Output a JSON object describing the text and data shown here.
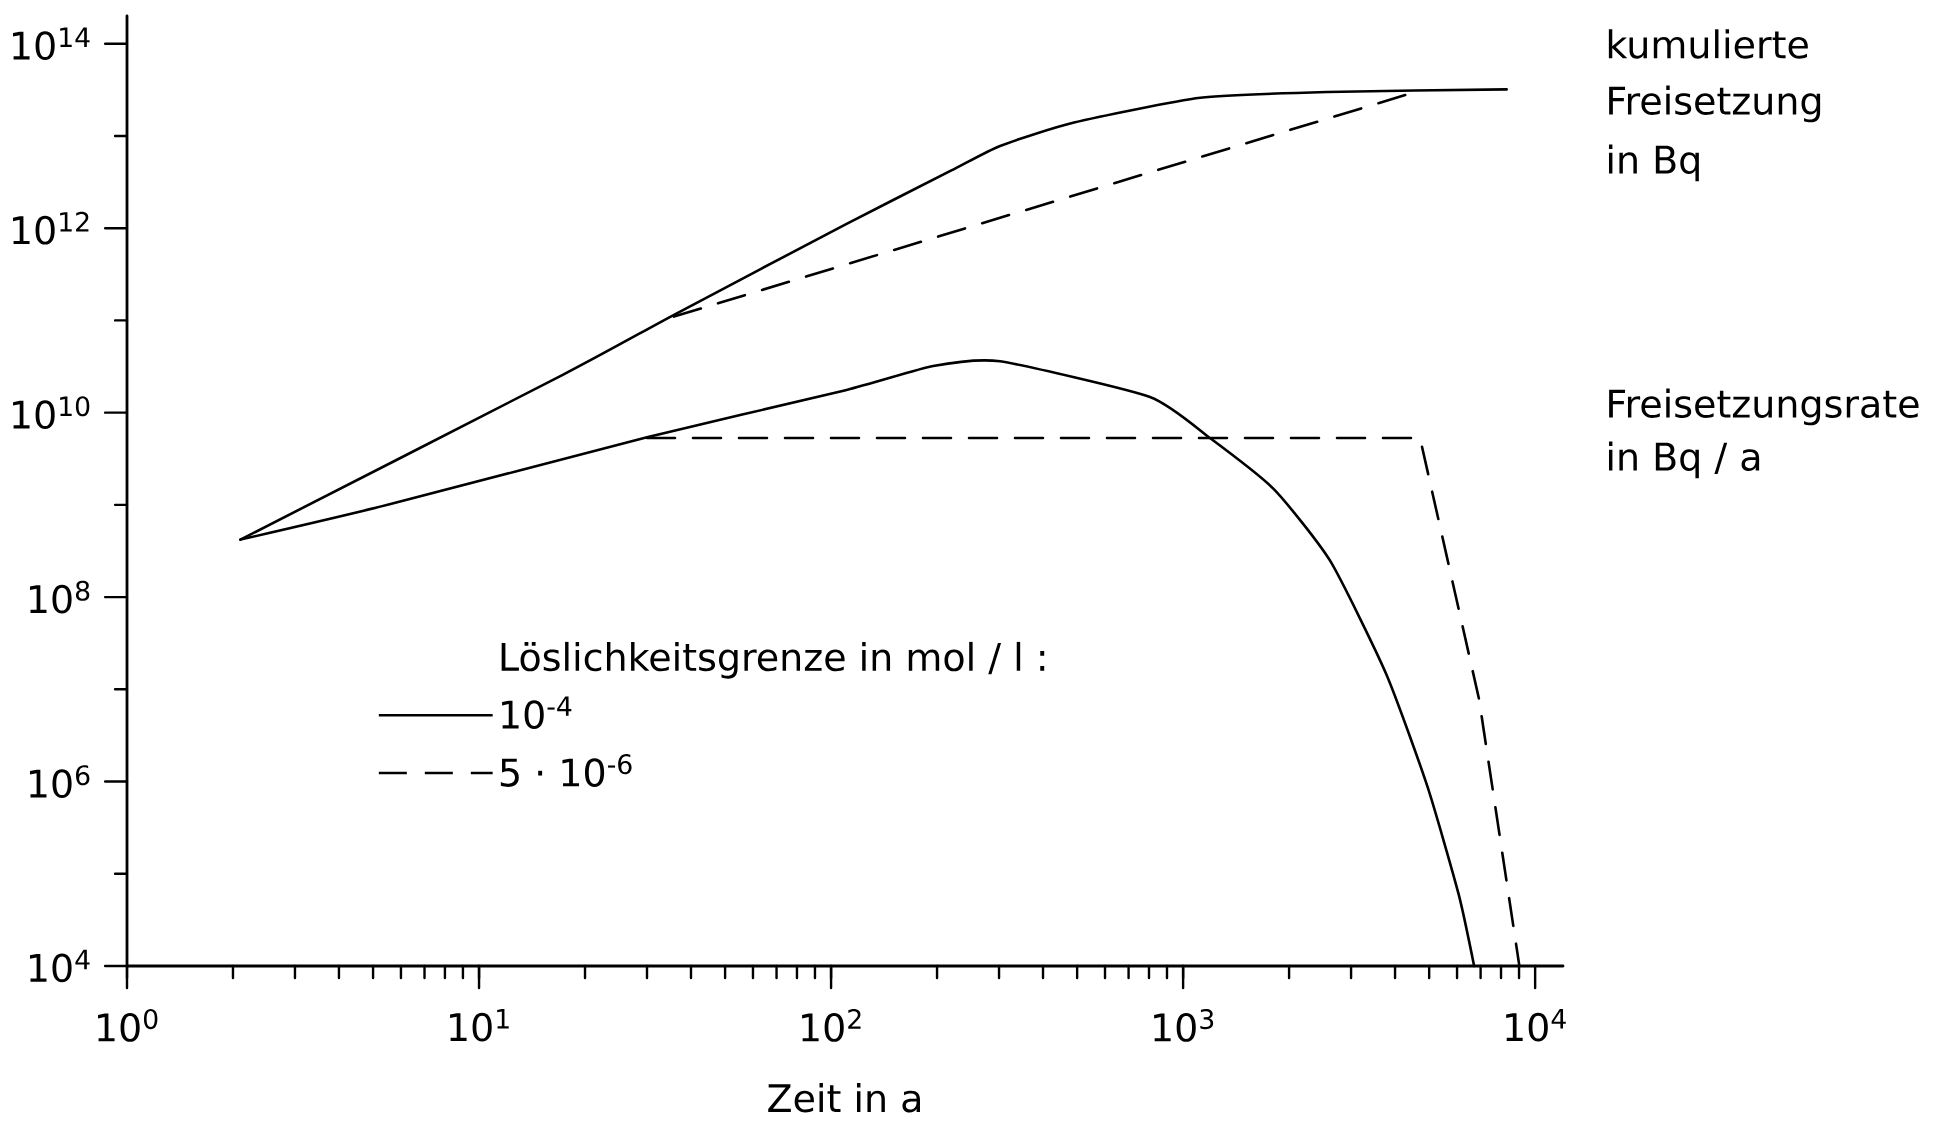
{
  "chart_data": {
    "type": "line",
    "xlabel": "Zeit in a",
    "log": "xy",
    "xlim": [
      1,
      12000
    ],
    "ylim": [
      10000,
      200000000000000
    ],
    "xticks": [
      {
        "value": 1,
        "label": "10$^{0}$"
      },
      {
        "value": 10,
        "label": "10$^{1}$"
      },
      {
        "value": 100,
        "label": "10$^{2}$"
      },
      {
        "value": 1000,
        "label": "10$^{3}$"
      },
      {
        "value": 10000,
        "label": "10$^{4}$"
      }
    ],
    "yticks": [
      {
        "value": 10000,
        "label": "10$^{4}$"
      },
      {
        "value": 1000000,
        "label": "10$^{6}$"
      },
      {
        "value": 100000000,
        "label": "10$^{8}$"
      },
      {
        "value": 10000000000,
        "label": "10$^{10}$"
      },
      {
        "value": 1000000000000,
        "label": "10$^{12}$"
      },
      {
        "value": 100000000000000,
        "label": "10$^{14}$"
      }
    ],
    "legend": "bottom left",
    "legend_title": "Löslichkeitsgrenze in mol / l :",
    "grid": false,
    "annotations": [
      "kumulierte",
      "Freisetzung",
      "in Bq",
      "Freisetzungsrate",
      "in Bq / a"
    ],
    "series": [
      {
        "name": "10$^{-4}$",
        "color": "#000000",
        "line_style": "solid",
        "x": [
          2.1,
          17.4,
          35.8,
          110,
          219,
          302,
          490,
          1120,
          2570,
          8300
        ],
        "values": [
          420000000,
          26000000000,
          115000000000,
          1100000000000,
          4200000000000,
          7800000000000,
          14000000000000,
          26000000000000,
          30000000000000,
          32000000000000
        ]
      },
      {
        "name": "5 · 10$^{-6}$",
        "color": "#000000",
        "line_style": "dashed",
        "x": [
          35.8,
          4570
        ],
        "values": [
          110000000000,
          30000000000000
        ]
      },
      {
        "color": "#000000",
        "line_style": "solid",
        "x": [
          2.1,
          5.5,
          30,
          110,
          195,
          302,
          805,
          1200,
          1810,
          2620,
          3780,
          4950,
          6070,
          6710
        ],
        "values": [
          420000000,
          1000000000,
          5400000000,
          17500000000,
          32000000000,
          36000000000,
          14800000000,
          5200000000,
          1480000000,
          245000000,
          14500000,
          870000,
          59000,
          10000
        ]
      },
      {
        "color": "#000000",
        "line_style": "dashed",
        "x": [
          30,
          4710,
          6930,
          9020
        ],
        "values": [
          5300000000,
          5300000000,
          7800000,
          10000
        ]
      }
    ]
  }
}
